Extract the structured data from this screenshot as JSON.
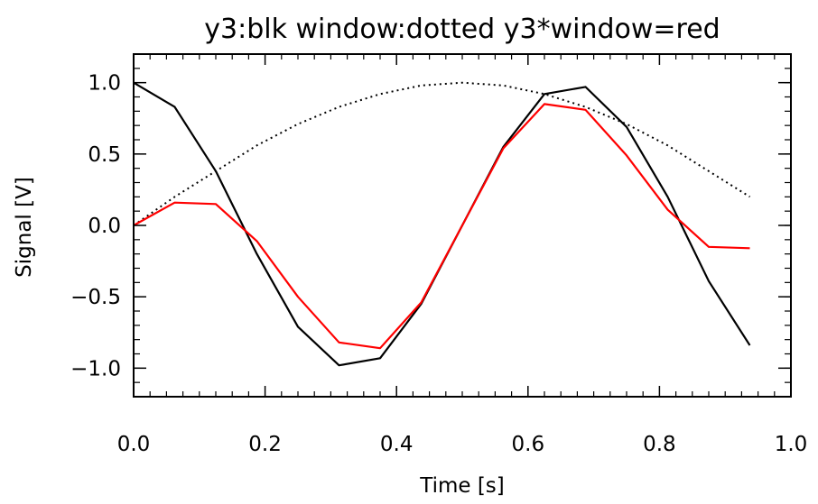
{
  "chart_data": {
    "type": "line",
    "title": "y3:blk window:dotted y3*window=red",
    "xlabel": "Time [s]",
    "ylabel": "Signal [V]",
    "xlim": [
      0.0,
      1.0
    ],
    "ylim": [
      -1.2,
      1.2
    ],
    "x_ticks": [
      0.0,
      0.2,
      0.4,
      0.6,
      0.8,
      1.0
    ],
    "x_tick_labels": [
      "0.0",
      "0.2",
      "0.4",
      "0.6",
      "0.8",
      "1.0"
    ],
    "y_ticks": [
      -1.0,
      -0.5,
      0.0,
      0.5,
      1.0
    ],
    "y_tick_labels": [
      "−1.0",
      "−0.5",
      "0.0",
      "0.5",
      "1.0"
    ],
    "grid": false,
    "legend": "none",
    "x": [
      0.0,
      0.0625,
      0.125,
      0.1875,
      0.25,
      0.3125,
      0.375,
      0.4375,
      0.5,
      0.5625,
      0.625,
      0.6875,
      0.75,
      0.8125,
      0.875,
      0.9375
    ],
    "series": [
      {
        "values": [
          1.0,
          0.83,
          0.38,
          -0.2,
          -0.71,
          -0.98,
          -0.93,
          -0.55,
          0.0,
          0.55,
          0.92,
          0.97,
          0.69,
          0.2,
          -0.39,
          -0.84
        ],
        "color": "#000000",
        "style": "solid"
      },
      {
        "values": [
          0.0,
          0.2,
          0.38,
          0.56,
          0.71,
          0.83,
          0.92,
          0.98,
          1.0,
          0.98,
          0.92,
          0.83,
          0.71,
          0.56,
          0.38,
          0.2
        ],
        "color": "#000000",
        "style": "dotted"
      },
      {
        "values": [
          0.0,
          0.16,
          0.15,
          -0.11,
          -0.5,
          -0.82,
          -0.86,
          -0.54,
          0.0,
          0.54,
          0.85,
          0.81,
          0.49,
          0.11,
          -0.15,
          -0.16
        ],
        "color": "#ff0000",
        "style": "solid"
      }
    ]
  }
}
